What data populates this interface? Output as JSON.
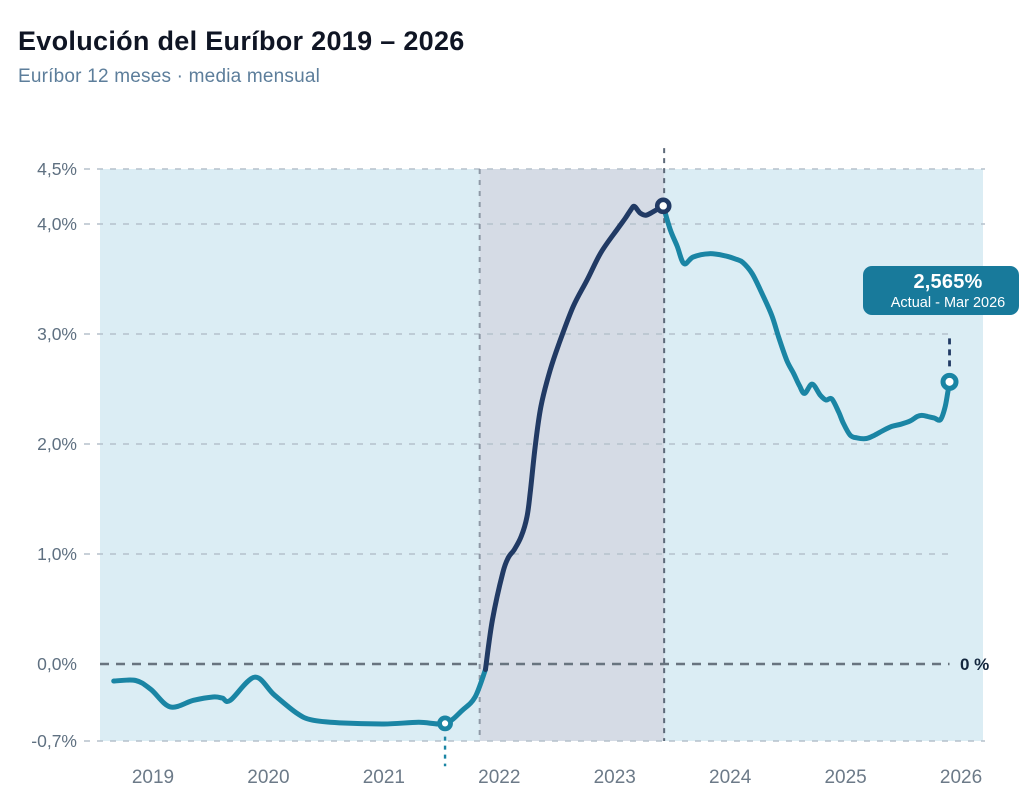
{
  "header": {
    "title": "Evolución del Euríbor 2019 – 2026",
    "subtitle": "Euríbor 12 meses · media mensual"
  },
  "tooltip": {
    "value": "2,565%",
    "caption": "Actual - Mar 2026"
  },
  "colors": {
    "teal": "#1a85a4",
    "navy": "#213a64",
    "plot_bg": "#dbedf4",
    "band_bg": "#d5dbe5",
    "grid": "#b5c1cb",
    "zero_line": "#68747f",
    "axis_text": "#5f7081",
    "x_axis_text": "#6c7a88",
    "zero_label_text": "#14273e",
    "tooltip_bg": "#187a9b",
    "tooltip_text": "#ffffff",
    "title_text": "#0f1524",
    "subtitle_text": "#5d7e9b"
  },
  "chart_data": {
    "type": "line",
    "title": "Evolución del Euríbor 2019 – 2026",
    "subtitle": "Euríbor 12 meses · media mensual",
    "xlim": [
      2018.541,
      2026.19
    ],
    "ylim": [
      -0.7,
      4.5
    ],
    "grid": true,
    "x_ticks": [
      {
        "value": 2019,
        "label": "2019"
      },
      {
        "value": 2020,
        "label": "2020"
      },
      {
        "value": 2021,
        "label": "2021"
      },
      {
        "value": 2022,
        "label": "2022"
      },
      {
        "value": 2023,
        "label": "2023"
      },
      {
        "value": 2024,
        "label": "2024"
      },
      {
        "value": 2025,
        "label": "2025"
      },
      {
        "value": 2026,
        "label": "2026"
      }
    ],
    "y_ticks": [
      {
        "value": 4.5,
        "label": "4,5%"
      },
      {
        "value": 4.0,
        "label": "4,0%"
      },
      {
        "value": 3.0,
        "label": "3,0%"
      },
      {
        "value": 2.0,
        "label": "2,0%"
      },
      {
        "value": 1.0,
        "label": "1,0%"
      },
      {
        "value": 0.0,
        "label": "0,0%"
      },
      {
        "value": -0.7,
        "label": "-0,7%"
      }
    ],
    "zero_line": {
      "value": 0,
      "label": "0 %",
      "x_from": 2018.541,
      "x_to": 2025.9
    },
    "highlight_band_x": [
      2021.83,
      2023.428
    ],
    "guides": [
      {
        "name": "surge-start-guide",
        "type": "vline",
        "x": 2021.83,
        "v_from": 4.5,
        "v_to": -0.7,
        "style": "band"
      },
      {
        "name": "peak-guide",
        "type": "vline",
        "x": 2023.428,
        "v_from": 4.69,
        "v_to": -0.7,
        "style": "peak"
      },
      {
        "name": "min-guide",
        "type": "vline",
        "x": 2021.53,
        "v_from": -0.66,
        "v_to": -0.93,
        "style": "teal"
      },
      {
        "name": "current-guide",
        "type": "vline",
        "x": 2025.9,
        "v_from": 2.96,
        "v_to": 2.66,
        "style": "navy"
      }
    ],
    "series": [
      {
        "name": "euribor-2019-2021",
        "color_key": "teal",
        "points": [
          [
            2018.66,
            -0.155
          ],
          [
            2018.85,
            -0.15
          ],
          [
            2018.98,
            -0.23
          ],
          [
            2019.15,
            -0.39
          ],
          [
            2019.35,
            -0.33
          ],
          [
            2019.52,
            -0.3
          ],
          [
            2019.6,
            -0.31
          ],
          [
            2019.67,
            -0.33
          ],
          [
            2019.88,
            -0.12
          ],
          [
            2020.05,
            -0.28
          ],
          [
            2020.25,
            -0.45
          ],
          [
            2020.38,
            -0.51
          ],
          [
            2020.62,
            -0.535
          ],
          [
            2021.0,
            -0.545
          ],
          [
            2021.3,
            -0.53
          ],
          [
            2021.53,
            -0.54
          ],
          [
            2021.68,
            -0.42
          ],
          [
            2021.79,
            -0.3
          ],
          [
            2021.88,
            -0.05
          ]
        ]
      },
      {
        "name": "euribor-surge-2022-2023",
        "color_key": "navy",
        "points": [
          [
            2021.88,
            -0.05
          ],
          [
            2021.94,
            0.4
          ],
          [
            2022.03,
            0.83
          ],
          [
            2022.08,
            0.97
          ],
          [
            2022.13,
            1.04
          ],
          [
            2022.19,
            1.16
          ],
          [
            2022.24,
            1.34
          ],
          [
            2022.27,
            1.58
          ],
          [
            2022.31,
            1.97
          ],
          [
            2022.36,
            2.34
          ],
          [
            2022.44,
            2.67
          ],
          [
            2022.52,
            2.92
          ],
          [
            2022.64,
            3.25
          ],
          [
            2022.76,
            3.49
          ],
          [
            2022.88,
            3.74
          ],
          [
            2023.02,
            3.95
          ],
          [
            2023.09,
            4.05
          ],
          [
            2023.14,
            4.13
          ],
          [
            2023.17,
            4.16
          ],
          [
            2023.22,
            4.1
          ],
          [
            2023.27,
            4.08
          ],
          [
            2023.33,
            4.11
          ],
          [
            2023.42,
            4.165
          ]
        ]
      },
      {
        "name": "euribor-2023-2026",
        "color_key": "teal",
        "points": [
          [
            2023.42,
            4.165
          ],
          [
            2023.48,
            3.95
          ],
          [
            2023.54,
            3.8
          ],
          [
            2023.6,
            3.64
          ],
          [
            2023.68,
            3.7
          ],
          [
            2023.82,
            3.73
          ],
          [
            2023.96,
            3.71
          ],
          [
            2024.05,
            3.68
          ],
          [
            2024.11,
            3.65
          ],
          [
            2024.19,
            3.55
          ],
          [
            2024.27,
            3.38
          ],
          [
            2024.36,
            3.17
          ],
          [
            2024.42,
            2.97
          ],
          [
            2024.49,
            2.76
          ],
          [
            2024.55,
            2.64
          ],
          [
            2024.6,
            2.53
          ],
          [
            2024.645,
            2.46
          ],
          [
            2024.71,
            2.545
          ],
          [
            2024.78,
            2.445
          ],
          [
            2024.83,
            2.4
          ],
          [
            2024.88,
            2.41
          ],
          [
            2024.94,
            2.29
          ],
          [
            2024.98,
            2.19
          ],
          [
            2025.04,
            2.08
          ],
          [
            2025.1,
            2.055
          ],
          [
            2025.18,
            2.05
          ],
          [
            2025.25,
            2.08
          ],
          [
            2025.32,
            2.12
          ],
          [
            2025.4,
            2.16
          ],
          [
            2025.48,
            2.18
          ],
          [
            2025.56,
            2.21
          ],
          [
            2025.62,
            2.25
          ],
          [
            2025.66,
            2.26
          ],
          [
            2025.71,
            2.25
          ],
          [
            2025.77,
            2.235
          ],
          [
            2025.82,
            2.22
          ],
          [
            2025.86,
            2.33
          ],
          [
            2025.885,
            2.47
          ],
          [
            2025.9,
            2.565
          ]
        ]
      }
    ],
    "markers": [
      {
        "name": "minimum",
        "x": 2021.53,
        "v": -0.54,
        "ring": "teal"
      },
      {
        "name": "peak",
        "x": 2023.42,
        "v": 4.165,
        "ring": "navy"
      },
      {
        "name": "current",
        "x": 2025.9,
        "v": 2.565,
        "ring": "teal"
      }
    ]
  }
}
